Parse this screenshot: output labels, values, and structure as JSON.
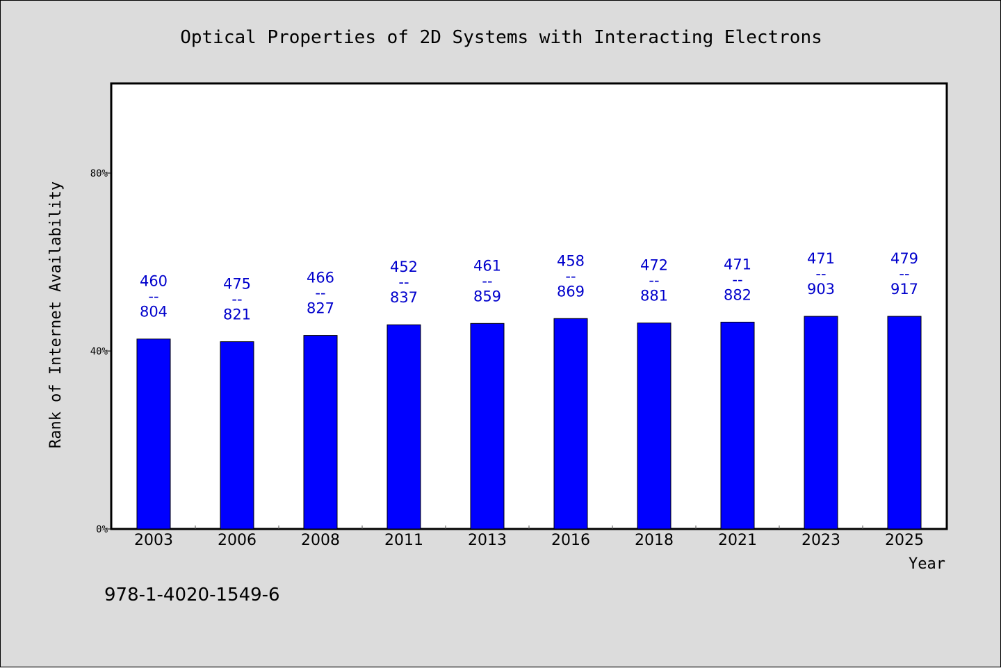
{
  "chart_data": {
    "type": "bar",
    "title": "Optical Properties of 2D Systems with Interacting Electrons",
    "xlabel": "Year",
    "ylabel": "Rank of Internet Availability",
    "categories": [
      "2003",
      "2006",
      "2008",
      "2011",
      "2013",
      "2016",
      "2018",
      "2021",
      "2023",
      "2025"
    ],
    "series": [
      {
        "values": [
          42.7,
          42.1,
          43.5,
          45.9,
          46.2,
          47.3,
          46.3,
          46.5,
          47.8,
          47.8
        ]
      }
    ],
    "bar_labels": [
      {
        "top": "460",
        "sep": "--",
        "bottom": "804"
      },
      {
        "top": "475",
        "sep": "--",
        "bottom": "821"
      },
      {
        "top": "466",
        "sep": "--",
        "bottom": "827"
      },
      {
        "top": "452",
        "sep": "--",
        "bottom": "837"
      },
      {
        "top": "461",
        "sep": "--",
        "bottom": "859"
      },
      {
        "top": "458",
        "sep": "--",
        "bottom": "869"
      },
      {
        "top": "472",
        "sep": "--",
        "bottom": "881"
      },
      {
        "top": "471",
        "sep": "--",
        "bottom": "882"
      },
      {
        "top": "471",
        "sep": "--",
        "bottom": "903"
      },
      {
        "top": "479",
        "sep": "--",
        "bottom": "917"
      }
    ],
    "yticks": [
      0,
      40,
      80
    ],
    "ytick_labels": [
      "0%",
      "40%",
      "80%"
    ],
    "ylim": [
      0,
      100
    ],
    "grid": false,
    "legend": "none",
    "colors": {
      "bar": "#0000ff",
      "bar_edge": "#000000",
      "label": "#0000cc",
      "background": "#dcdcdc",
      "plot_area": "#ffffff"
    }
  },
  "footer": {
    "isbn": "978-1-4020-1549-6"
  }
}
